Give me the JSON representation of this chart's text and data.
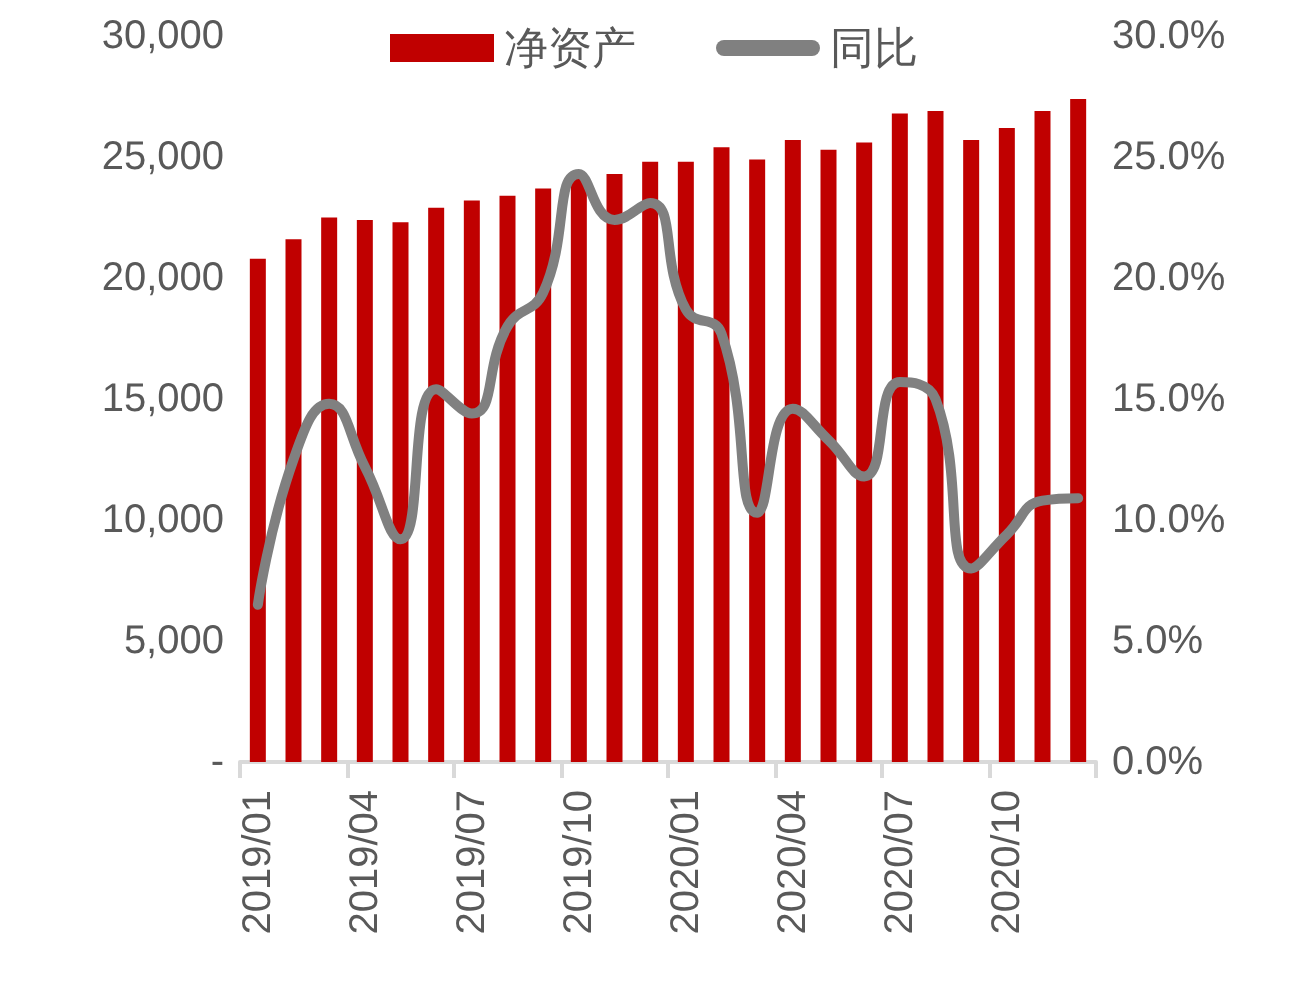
{
  "chart_data": {
    "type": "bar",
    "categories": [
      "2019/01",
      null,
      null,
      "2019/04",
      null,
      null,
      "2019/07",
      null,
      null,
      "2019/10",
      null,
      null,
      "2020/01",
      null,
      null,
      "2020/04",
      null,
      null,
      "2020/07",
      null,
      null,
      "2020/10",
      null,
      null
    ],
    "series": [
      {
        "name": "净资产",
        "color": "#c00000",
        "values": [
          20800,
          21600,
          22500,
          22400,
          22300,
          22900,
          23200,
          23400,
          23700,
          24300,
          24300,
          24800,
          24800,
          25400,
          24900,
          25700,
          25300,
          25600,
          26800,
          26900,
          25700,
          26200,
          26900,
          27400
        ]
      },
      {
        "name": "同比",
        "type": "line",
        "axis": "y2",
        "color": "#808080",
        "marker": "none",
        "values": [
          6.5,
          12.5,
          14.8,
          12.2,
          9.2,
          15.4,
          14.4,
          18.0,
          19.4,
          24.3,
          22.4,
          23.1,
          18.7,
          17.7,
          10.3,
          14.6,
          13.3,
          11.8,
          15.7,
          15.0,
          8.0,
          9.4,
          10.8,
          10.9
        ]
      }
    ],
    "ylim": [
      0,
      30000
    ],
    "yticks": [
      {
        "value": 0,
        "label": "-"
      },
      {
        "value": 5000,
        "label": "5,000"
      },
      {
        "value": 10000,
        "label": "10,000"
      },
      {
        "value": 15000,
        "label": "15,000"
      },
      {
        "value": 20000,
        "label": "20,000"
      },
      {
        "value": 25000,
        "label": "25,000"
      },
      {
        "value": 30000,
        "label": "30,000"
      }
    ],
    "y2lim": [
      0,
      30
    ],
    "y2ticks": [
      {
        "value": 0,
        "label": "0.0%"
      },
      {
        "value": 5,
        "label": "5.0%"
      },
      {
        "value": 10,
        "label": "10.0%"
      },
      {
        "value": 15,
        "label": "15.0%"
      },
      {
        "value": 20,
        "label": "20.0%"
      },
      {
        "value": 25,
        "label": "25.0%"
      },
      {
        "value": 30,
        "label": "30.0%"
      }
    ],
    "grid": false,
    "legend": "top"
  }
}
